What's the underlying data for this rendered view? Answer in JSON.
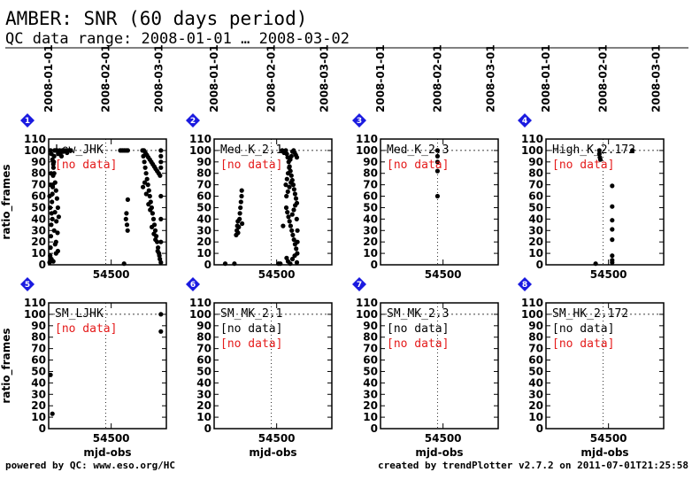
{
  "header": {
    "title": "AMBER: SNR (60 days period)",
    "subtitle": "QC data range: 2008-01-01 … 2008-03-02"
  },
  "footer": {
    "left": "powered by QC: www.eso.org/HC",
    "right": "created by trendPlotter v2.7.2 on 2011-07-01T21:25:58"
  },
  "colors": {
    "badge": "#1a1ae0",
    "nodata": "#e41a1a",
    "points": "#000000"
  },
  "chart_data": {
    "type": "scatter",
    "x_axis_label": "mjd-obs",
    "y_axis_label": "ratio_frames",
    "ylim": [
      0,
      110
    ],
    "y_ticks": [
      0,
      10,
      20,
      30,
      40,
      50,
      60,
      70,
      80,
      90,
      100,
      110
    ],
    "xlim": [
      54466,
      54530
    ],
    "x_ticks": [
      54500
    ],
    "date_markers": [
      {
        "label": "2008-01-01",
        "mjd": 54466
      },
      {
        "label": "2008-02-01",
        "mjd": 54497
      },
      {
        "label": "2008-03-01",
        "mjd": 54526
      }
    ],
    "reference_line_y": 100,
    "panels": [
      {
        "index": "1",
        "label": "Low_JHK",
        "nodata": [
          "[no data]"
        ],
        "nodata_color": [
          "red"
        ],
        "points": [
          [
            54466.5,
            2
          ],
          [
            54466.8,
            8
          ],
          [
            54467,
            15
          ],
          [
            54467.2,
            25
          ],
          [
            54467.4,
            35
          ],
          [
            54467.6,
            45
          ],
          [
            54467.8,
            55
          ],
          [
            54468,
            62
          ],
          [
            54468.2,
            70
          ],
          [
            54468.4,
            78
          ],
          [
            54468.6,
            85
          ],
          [
            54468.8,
            90
          ],
          [
            54469,
            95
          ],
          [
            54469.2,
            100
          ],
          [
            54467,
            100
          ],
          [
            54467.5,
            97
          ],
          [
            54468,
            92
          ],
          [
            54468.5,
            88
          ],
          [
            54469,
            80
          ],
          [
            54469.5,
            72
          ],
          [
            54470,
            65
          ],
          [
            54470.5,
            58
          ],
          [
            54471,
            50
          ],
          [
            54471.5,
            42
          ],
          [
            54472,
            100
          ],
          [
            54472.5,
            98
          ],
          [
            54473,
            95
          ],
          [
            54473.5,
            100
          ],
          [
            54474,
            99
          ],
          [
            54475,
            100
          ],
          [
            54476,
            98
          ],
          [
            54477,
            100
          ],
          [
            54478,
            100
          ],
          [
            54466.5,
            60
          ],
          [
            54467,
            70
          ],
          [
            54468,
            40
          ],
          [
            54469,
            30
          ],
          [
            54470,
            20
          ],
          [
            54471,
            12
          ],
          [
            54467.5,
            5
          ],
          [
            54468.5,
            3
          ],
          [
            54469.5,
            18
          ],
          [
            54470,
            10
          ],
          [
            54466.8,
            50
          ],
          [
            54467.3,
            80
          ],
          [
            54468.2,
            68
          ],
          [
            54469.4,
            46
          ],
          [
            54470.2,
            38
          ],
          [
            54470.8,
            28
          ],
          [
            54469.8,
            100
          ],
          [
            54470.5,
            100
          ],
          [
            54471.2,
            97
          ],
          [
            54505,
            100
          ],
          [
            54506,
            100
          ],
          [
            54507,
            100
          ],
          [
            54508,
            100
          ],
          [
            54509,
            100
          ],
          [
            54507,
            1
          ],
          [
            54508,
            40
          ],
          [
            54508.3,
            45
          ],
          [
            54508.6,
            35
          ],
          [
            54508.9,
            30
          ],
          [
            54509,
            57
          ],
          [
            54517,
            100
          ],
          [
            54517.5,
            95
          ],
          [
            54518,
            90
          ],
          [
            54518.5,
            85
          ],
          [
            54519,
            80
          ],
          [
            54519.5,
            75
          ],
          [
            54520,
            70
          ],
          [
            54520.5,
            65
          ],
          [
            54521,
            60
          ],
          [
            54521.5,
            55
          ],
          [
            54522,
            50
          ],
          [
            54522.5,
            45
          ],
          [
            54523,
            40
          ],
          [
            54523.5,
            35
          ],
          [
            54524,
            30
          ],
          [
            54524.5,
            25
          ],
          [
            54525,
            20
          ],
          [
            54525.5,
            15
          ],
          [
            54526,
            10
          ],
          [
            54526.5,
            5
          ],
          [
            54527,
            2
          ],
          [
            54517.3,
            68
          ],
          [
            54518.2,
            72
          ],
          [
            54519.1,
            62
          ],
          [
            54520.3,
            53
          ],
          [
            54521.2,
            48
          ],
          [
            54522.1,
            33
          ],
          [
            54523.2,
            27
          ],
          [
            54524.1,
            22
          ],
          [
            54525.3,
            12
          ],
          [
            54526.2,
            8
          ],
          [
            54517.8,
            100
          ],
          [
            54518.6,
            98
          ],
          [
            54519.4,
            96
          ],
          [
            54520.2,
            94
          ],
          [
            54521,
            92
          ],
          [
            54521.8,
            90
          ],
          [
            54522.6,
            88
          ],
          [
            54523.4,
            86
          ],
          [
            54524.2,
            84
          ],
          [
            54525,
            82
          ],
          [
            54525.8,
            80
          ],
          [
            54526.6,
            78
          ],
          [
            54527,
            100
          ],
          [
            54527,
            95
          ],
          [
            54527,
            90
          ],
          [
            54527,
            85
          ],
          [
            54527,
            60
          ],
          [
            54527,
            40
          ],
          [
            54527,
            20
          ]
        ]
      },
      {
        "index": "2",
        "label": "Med_K_2.1",
        "nodata": [
          "[no data]"
        ],
        "nodata_color": [
          "red"
        ],
        "points": [
          [
            54472,
            1
          ],
          [
            54477,
            1
          ],
          [
            54478,
            26
          ],
          [
            54478.3,
            30
          ],
          [
            54478.6,
            34
          ],
          [
            54478.9,
            38
          ],
          [
            54479,
            28
          ],
          [
            54479.4,
            33
          ],
          [
            54479.8,
            40
          ],
          [
            54480,
            45
          ],
          [
            54480.3,
            50
          ],
          [
            54480.6,
            55
          ],
          [
            54480.9,
            60
          ],
          [
            54481,
            65
          ],
          [
            54481.2,
            36
          ],
          [
            54501,
            1
          ],
          [
            54502,
            1
          ],
          [
            54503,
            100
          ],
          [
            54504,
            98
          ],
          [
            54503.5,
            34
          ],
          [
            54505,
            100
          ],
          [
            54505.5,
            97
          ],
          [
            54506,
            94
          ],
          [
            54506.5,
            90
          ],
          [
            54507,
            86
          ],
          [
            54507.5,
            82
          ],
          [
            54508,
            78
          ],
          [
            54508.5,
            74
          ],
          [
            54509,
            70
          ],
          [
            54509.5,
            66
          ],
          [
            54510,
            62
          ],
          [
            54510.5,
            58
          ],
          [
            54511,
            54
          ],
          [
            54505.2,
            50
          ],
          [
            54505.8,
            46
          ],
          [
            54506.4,
            42
          ],
          [
            54507,
            38
          ],
          [
            54507.6,
            34
          ],
          [
            54508.2,
            30
          ],
          [
            54508.8,
            26
          ],
          [
            54509.4,
            22
          ],
          [
            54510,
            18
          ],
          [
            54510.6,
            14
          ],
          [
            54511.2,
            10
          ],
          [
            54505.4,
            6
          ],
          [
            54506.2,
            3
          ],
          [
            54507.4,
            1
          ],
          [
            54508.6,
            5
          ],
          [
            54509.8,
            8
          ],
          [
            54511,
            2
          ],
          [
            54505,
            70
          ],
          [
            54505.6,
            75
          ],
          [
            54506.2,
            80
          ],
          [
            54506.8,
            85
          ],
          [
            54507.4,
            92
          ],
          [
            54508,
            95
          ],
          [
            54508.6,
            99
          ],
          [
            54509.2,
            100
          ],
          [
            54509.8,
            98
          ],
          [
            54510.4,
            96
          ],
          [
            54511,
            94
          ],
          [
            54505.3,
            60
          ],
          [
            54506.1,
            64
          ],
          [
            54506.9,
            68
          ],
          [
            54507.7,
            72
          ],
          [
            54508.5,
            44
          ],
          [
            54509.3,
            48
          ],
          [
            54510.1,
            52
          ],
          [
            54510.9,
            40
          ],
          [
            54511.3,
            30
          ],
          [
            54511.3,
            20
          ]
        ]
      },
      {
        "index": "3",
        "label": "Med_K_2.3",
        "nodata": [
          "[no data]"
        ],
        "nodata_color": [
          "red"
        ],
        "points": [
          [
            54497,
            100
          ],
          [
            54497,
            95
          ],
          [
            54497,
            90
          ],
          [
            54497,
            82
          ],
          [
            54497,
            60
          ]
        ]
      },
      {
        "index": "4",
        "label": "High_K_2.172",
        "nodata": [
          "[no data]"
        ],
        "nodata_color": [
          "red"
        ],
        "points": [
          [
            54493,
            1
          ],
          [
            54495,
            100
          ],
          [
            54495,
            97
          ],
          [
            54495.3,
            94
          ],
          [
            54495.6,
            92
          ],
          [
            54502,
            2
          ],
          [
            54502,
            4
          ],
          [
            54502,
            8
          ],
          [
            54502,
            22
          ],
          [
            54502,
            31
          ],
          [
            54502,
            39
          ],
          [
            54502,
            51
          ],
          [
            54502,
            69
          ],
          [
            54513,
            100
          ]
        ]
      },
      {
        "index": "5",
        "label": "SM_LJHK",
        "nodata": [
          "[no data]"
        ],
        "nodata_color": [
          "red"
        ],
        "points": [
          [
            54467,
            47
          ],
          [
            54468,
            13
          ],
          [
            54527,
            100
          ],
          [
            54527,
            85
          ]
        ]
      },
      {
        "index": "6",
        "label": "SM_MK_2.1",
        "nodata": [
          "[no data]",
          "[no data]"
        ],
        "nodata_color": [
          "black",
          "red"
        ],
        "points": []
      },
      {
        "index": "7",
        "label": "SM_MK_2.3",
        "nodata": [
          "[no data]",
          "[no data]"
        ],
        "nodata_color": [
          "black",
          "red"
        ],
        "points": []
      },
      {
        "index": "8",
        "label": "SM_HK_2.172",
        "nodata": [
          "[no data]",
          "[no data]"
        ],
        "nodata_color": [
          "black",
          "red"
        ],
        "points": []
      }
    ]
  }
}
